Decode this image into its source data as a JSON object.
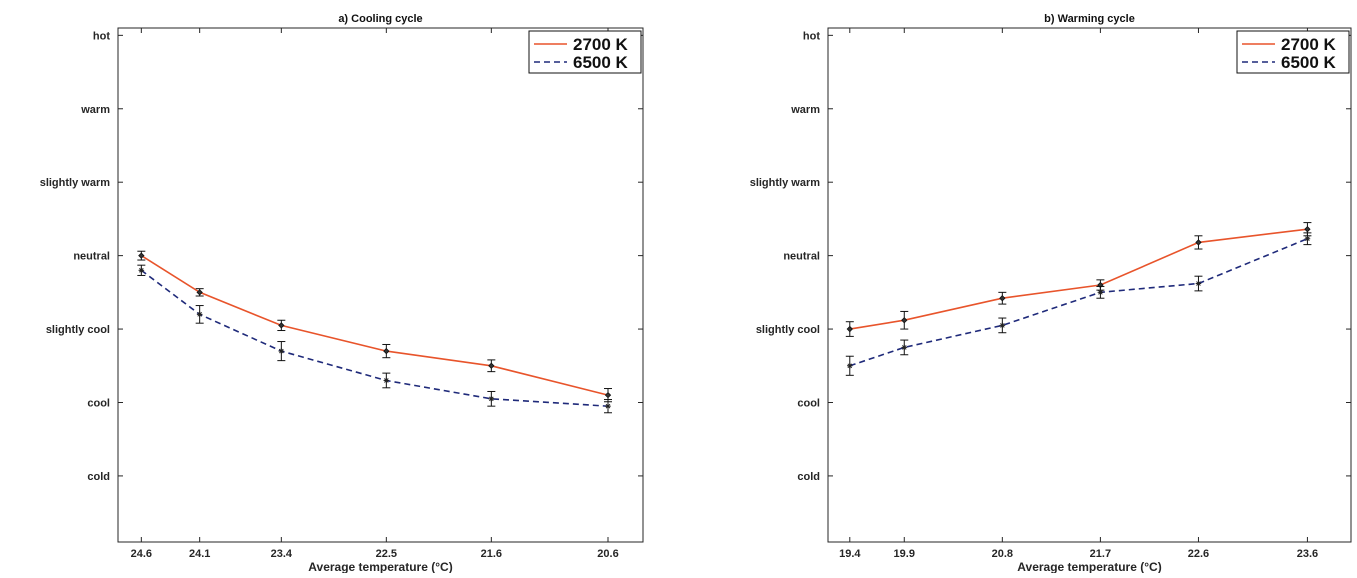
{
  "chart_data": [
    {
      "type": "line",
      "title": "a) Cooling cycle",
      "xlabel": "Average temperature (°C)",
      "ylabel": "",
      "x": [
        24.6,
        24.1,
        23.4,
        22.5,
        21.6,
        20.6
      ],
      "x_tick_labels": [
        "24.6",
        "24.1",
        "23.4",
        "22.5",
        "21.6",
        "20.6"
      ],
      "xlim": [
        24.8,
        20.3
      ],
      "x_reversed": true,
      "ylim": [
        -3.9,
        3.1
      ],
      "y_ticks": [
        -3,
        -2,
        -1,
        0,
        1,
        2,
        3
      ],
      "y_tick_labels": [
        "cold",
        "cool",
        "slightly cool",
        "neutral",
        "slightly warm",
        "warm",
        "hot"
      ],
      "grid": false,
      "legend_position": "top-right",
      "series": [
        {
          "name": "2700 K",
          "color": "#e8542b",
          "dash": "solid",
          "marker": "diamond",
          "values": [
            0.0,
            -0.5,
            -0.95,
            -1.3,
            -1.5,
            -1.9
          ],
          "errors": [
            0.06,
            0.05,
            0.07,
            0.09,
            0.08,
            0.09
          ]
        },
        {
          "name": "6500 K",
          "color": "#1f2a7a",
          "dash": "dashed",
          "marker": "asterisk",
          "values": [
            -0.2,
            -0.8,
            -1.3,
            -1.7,
            -1.95,
            -2.05
          ],
          "errors": [
            0.07,
            0.12,
            0.13,
            0.1,
            0.1,
            0.09
          ]
        }
      ]
    },
    {
      "type": "line",
      "title": "b) Warming cycle",
      "xlabel": "Average temperature (°C)",
      "ylabel": "",
      "x": [
        19.4,
        19.9,
        20.8,
        21.7,
        22.6,
        23.6
      ],
      "x_tick_labels": [
        "19.4",
        "19.9",
        "20.8",
        "21.7",
        "22.6",
        "23.6"
      ],
      "xlim": [
        19.2,
        24.0
      ],
      "x_reversed": false,
      "ylim": [
        -3.9,
        3.1
      ],
      "y_ticks": [
        -3,
        -2,
        -1,
        0,
        1,
        2,
        3
      ],
      "y_tick_labels": [
        "cold",
        "cool",
        "slightly cool",
        "neutral",
        "slightly warm",
        "warm",
        "hot"
      ],
      "grid": false,
      "legend_position": "top-right",
      "series": [
        {
          "name": "2700 K",
          "color": "#e8542b",
          "dash": "solid",
          "marker": "diamond",
          "values": [
            -1.0,
            -0.88,
            -0.58,
            -0.4,
            0.18,
            0.36
          ],
          "errors": [
            0.1,
            0.12,
            0.08,
            0.07,
            0.09,
            0.09
          ]
        },
        {
          "name": "6500 K",
          "color": "#1f2a7a",
          "dash": "dashed",
          "marker": "asterisk",
          "values": [
            -1.5,
            -1.25,
            -0.95,
            -0.5,
            -0.38,
            0.23
          ],
          "errors": [
            0.13,
            0.1,
            0.1,
            0.08,
            0.1,
            0.08
          ]
        }
      ]
    }
  ]
}
